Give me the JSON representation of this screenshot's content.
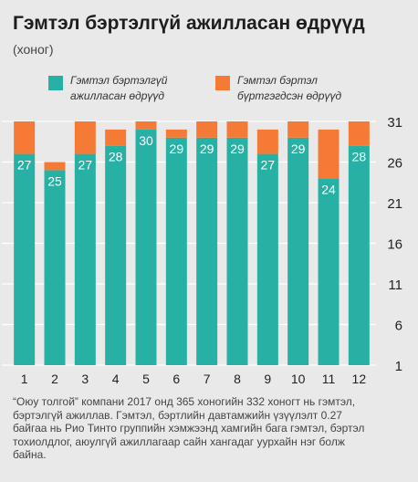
{
  "title": "Гэмтэл бэртэлгүй ажилласан өдрүүд",
  "unit": "(хоног)",
  "colors": {
    "series0": "#27b1a4",
    "series1": "#f47a35",
    "background": "#e9e9e9"
  },
  "legend": [
    {
      "label": "Гэмтэл бэртэлгүй ажилласан өдрүүд"
    },
    {
      "label": "Гэмтэл бэртэл бүртгэгдсэн өдрүүд"
    }
  ],
  "caption": "“Оюу толгой” компани 2017 онд 365 хоногийн 332 хоногт нь гэмтэл,\nбэртэлгүй ажиллав. Гэмтэл, бэртлийн давтамжийн үзүүлэлт 0.27\nбайгаа нь Рио Тинто группийн хэмжээнд хамгийн бага гэмтэл, бэртэл\nтохиолдлог, аюулгүй ажиллагаар сайн хангадаг уурхайн нэг болж\nбайна.",
  "chart_data": {
    "type": "bar",
    "stacked": true,
    "categories": [
      "1",
      "2",
      "3",
      "4",
      "5",
      "6",
      "7",
      "8",
      "9",
      "10",
      "11",
      "12"
    ],
    "series": [
      {
        "name": "Гэмтэл бэртэлгүй ажилласан өдрүүд",
        "values": [
          27,
          25,
          27,
          28,
          30,
          29,
          29,
          29,
          27,
          29,
          24,
          28
        ]
      },
      {
        "name": "Гэмтэл бэртэл бүртгэгдсэн өдрүүд",
        "values": [
          4,
          1,
          4,
          2,
          1,
          1,
          2,
          2,
          3,
          2,
          6,
          3
        ]
      }
    ],
    "ylim": [
      1,
      31
    ],
    "yticks": [
      1,
      6,
      11,
      16,
      21,
      26,
      31
    ],
    "y_axis_position": "right",
    "grid": true,
    "legend_position": "top"
  }
}
